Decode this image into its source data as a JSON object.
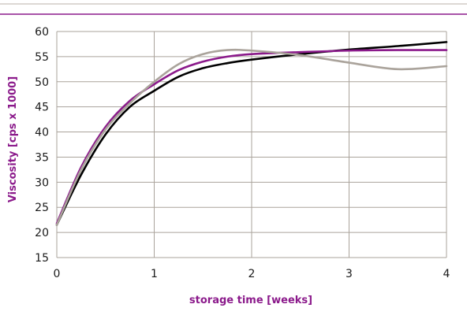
{
  "chart_data": {
    "type": "line",
    "title": "",
    "xlabel": "storage time [weeks]",
    "ylabel": "Viscosity [cps x 1000]",
    "xlim": [
      0,
      4
    ],
    "ylim": [
      15,
      60
    ],
    "xticks": [
      0,
      1,
      2,
      3,
      4
    ],
    "yticks": [
      15,
      20,
      25,
      30,
      35,
      40,
      45,
      50,
      55,
      60
    ],
    "grid": true,
    "legend": "none",
    "colors": {
      "axis_title": "#8b1a8b",
      "grid": "#aaa39b",
      "top_rule": "#8b1a8b",
      "top_rule_thin": "#b8b2aa"
    },
    "series": [
      {
        "color": "#000000",
        "x": [
          0,
          0.25,
          0.5,
          0.75,
          1.0,
          1.25,
          1.5,
          1.75,
          2.0,
          2.5,
          3.0,
          3.5,
          4.0
        ],
        "y": [
          21.5,
          31.5,
          39.5,
          45.0,
          48.2,
          51.0,
          52.7,
          53.7,
          54.4,
          55.5,
          56.4,
          57.1,
          57.9
        ]
      },
      {
        "color": "#8b1a8b",
        "x": [
          0,
          0.25,
          0.5,
          0.75,
          1.0,
          1.25,
          1.5,
          1.75,
          2.0,
          2.5,
          3.0,
          3.5,
          4.0
        ],
        "y": [
          21.8,
          33.0,
          41.0,
          46.2,
          49.5,
          52.3,
          54.0,
          55.0,
          55.5,
          55.9,
          56.2,
          56.3,
          56.3
        ]
      },
      {
        "color": "#aaa39b",
        "x": [
          0,
          0.25,
          0.5,
          0.75,
          1.0,
          1.25,
          1.5,
          1.75,
          2.0,
          2.5,
          3.0,
          3.5,
          4.0
        ],
        "y": [
          21.5,
          32.5,
          40.5,
          45.7,
          50.0,
          53.5,
          55.5,
          56.3,
          56.2,
          55.3,
          53.8,
          52.5,
          53.1
        ]
      }
    ]
  }
}
